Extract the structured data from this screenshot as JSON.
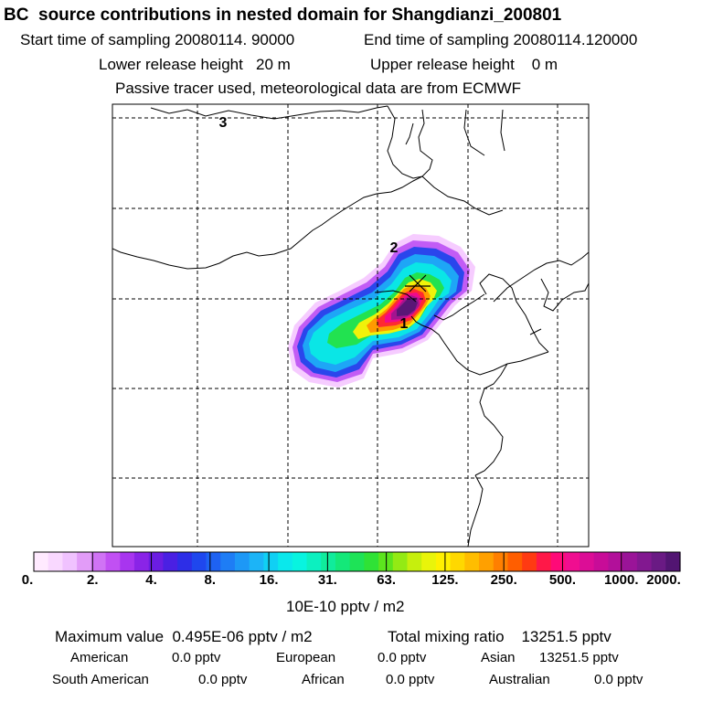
{
  "header": {
    "title": "BC  source contributions in nested domain for Shangdianzi_200801",
    "start_label": "Start time of sampling 20080114. 90000",
    "end_label": "End time of sampling 20080114.120000",
    "lower_label": "Lower release height   20 m",
    "upper_label": "Upper release height    0 m",
    "tracer_label": "Passive tracer used, meteorological data are from ECMWF"
  },
  "map": {
    "region_labels": [
      "3",
      "2",
      "1"
    ],
    "receptor_marker": "x-icon"
  },
  "colorbar": {
    "ticks": [
      "0.",
      "2.",
      "4.",
      "8.",
      "16.",
      "31.",
      "63.",
      "125.",
      "250.",
      "500.",
      "1000.",
      "2000."
    ],
    "unit": "10E-10 pptv / m2",
    "colors": [
      "#ffeaff",
      "#f9d8ff",
      "#f0c2ff",
      "#e29cf8",
      "#d073f5",
      "#c150f3",
      "#a835ef",
      "#8a24e7",
      "#6b1de2",
      "#4a20e3",
      "#2d2ee7",
      "#1f47ee",
      "#1e62f2",
      "#1e7df5",
      "#1d98f6",
      "#1cb4f7",
      "#10d0f4",
      "#0ae8ec",
      "#08f4e0",
      "#0cf0c0",
      "#10ec9c",
      "#14e879",
      "#1ee357",
      "#2fe236",
      "#5ce51e",
      "#93ea14",
      "#c6ef0d",
      "#e9f40a",
      "#fff000",
      "#ffd800",
      "#ffbd00",
      "#ffa000",
      "#ff7f00",
      "#ff5e00",
      "#ff3a12",
      "#ff1848",
      "#ff0a78",
      "#f00e90",
      "#dc0d96",
      "#c80c98",
      "#b2109a",
      "#9a1498",
      "#821890",
      "#6a1a84",
      "#521572"
    ]
  },
  "stats": {
    "max_label": "Maximum value  0.495E-06 pptv / m2",
    "total_label": "Total mixing ratio    13251.5 pptv",
    "regions": [
      {
        "name": "American",
        "value": "0.0 pptv"
      },
      {
        "name": "European",
        "value": "0.0 pptv"
      },
      {
        "name": "Asian",
        "value": "13251.5 pptv"
      },
      {
        "name": "South American",
        "value": "0.0 pptv"
      },
      {
        "name": "African",
        "value": "0.0 pptv"
      },
      {
        "name": "Australian",
        "value": "0.0 pptv"
      }
    ]
  }
}
